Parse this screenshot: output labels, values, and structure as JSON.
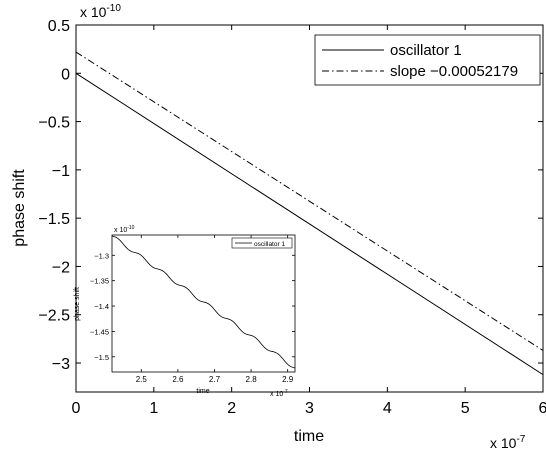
{
  "chart_data": [
    {
      "type": "line",
      "xlabel": "time",
      "ylabel": "phase shift",
      "x_exponent": "x 10",
      "x_exponent_power": "-7",
      "y_exponent": "x 10",
      "y_exponent_power": "-10",
      "xlim": [
        0,
        6
      ],
      "ylim": [
        -3.3,
        0.5
      ],
      "xticks": [
        0,
        1,
        2,
        3,
        4,
        5,
        6
      ],
      "xtick_labels": [
        "0",
        "1",
        "2",
        "3",
        "4",
        "5",
        "6"
      ],
      "yticks": [
        0.5,
        0,
        -0.5,
        -1,
        -1.5,
        -2,
        -2.5,
        -3
      ],
      "ytick_labels": [
        "0.5",
        "0",
        "−0.5",
        "−1",
        "−1.5",
        "−2",
        "−2.5",
        "−3"
      ],
      "legend_position": "top-right",
      "series": [
        {
          "name": "oscillator 1",
          "style": "solid",
          "x": [
            0,
            6
          ],
          "y": [
            0,
            -3.12
          ]
        },
        {
          "name": "slope −0.00052179",
          "style": "dashdot",
          "x": [
            0,
            6
          ],
          "y": [
            0.22,
            -2.87
          ]
        }
      ]
    },
    {
      "type": "line",
      "xlabel": "time",
      "ylabel": "phase shift",
      "x_exponent": "x 10",
      "x_exponent_power": "-7",
      "y_exponent": "x 10",
      "y_exponent_power": "-10",
      "xlim": [
        2.42,
        2.92
      ],
      "ylim": [
        -1.53,
        -1.26
      ],
      "xticks": [
        2.5,
        2.6,
        2.7,
        2.8,
        2.9
      ],
      "xtick_labels": [
        "2.5",
        "2.6",
        "2.7",
        "2.8",
        "2.9"
      ],
      "yticks": [
        -1.3,
        -1.35,
        -1.4,
        -1.45,
        -1.5
      ],
      "ytick_labels": [
        "−1.3",
        "−1.35",
        "−1.4",
        "−1.45",
        "−1.5"
      ],
      "legend_position": "top-right",
      "series": [
        {
          "name": "oscillator 1",
          "style": "solid",
          "wiggle_period": 0.0625,
          "wiggle_amplitude": 0.0035,
          "x": [
            2.42,
            2.92
          ],
          "y": [
            -1.262,
            -1.522
          ]
        }
      ]
    }
  ]
}
